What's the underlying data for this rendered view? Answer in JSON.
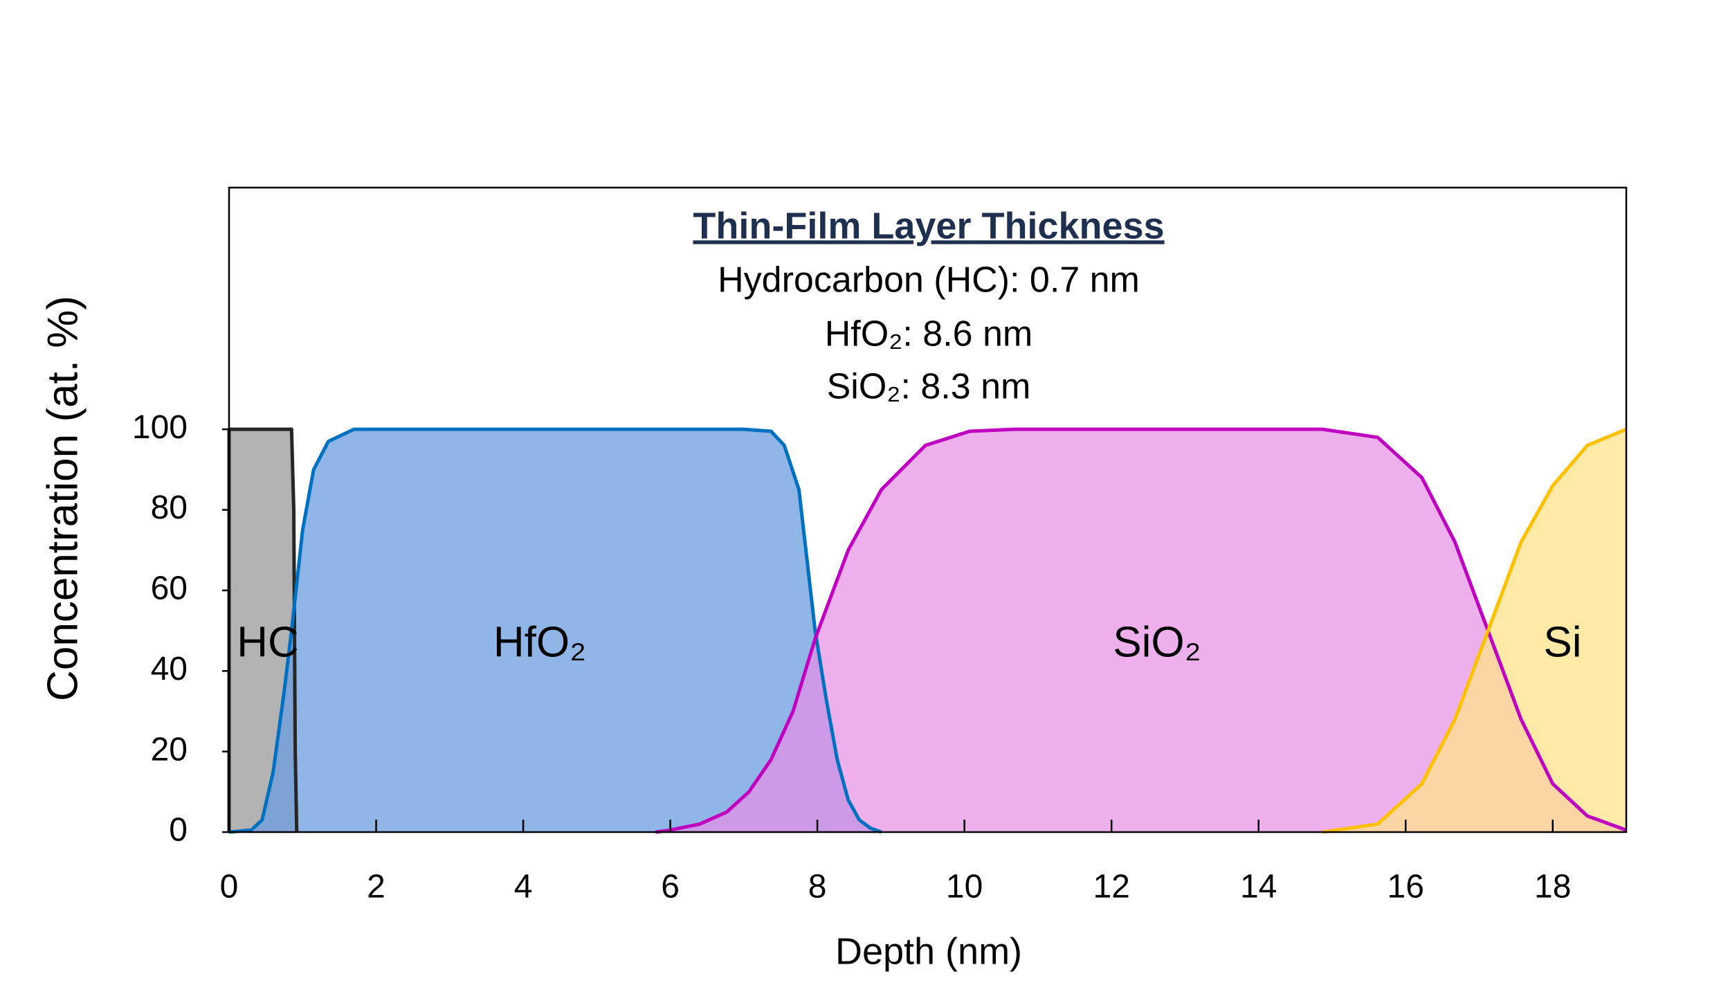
{
  "chart_data": {
    "type": "area",
    "annotations": [
      "Thin-Film Layer Thickness",
      "Hydrocarbon (HC): 0.7 nm",
      "HfO₂: 8.6 nm",
      "SiO₂: 8.3 nm"
    ],
    "region_labels": [
      "HC",
      "HfO₂",
      "SiO₂",
      "Si"
    ],
    "xlabel": "Depth (nm)",
    "ylabel": "Concentration (at. %)",
    "xlim": [
      0,
      19
    ],
    "ylim": [
      0,
      160
    ],
    "xticks": [
      0,
      2,
      4,
      6,
      8,
      10,
      12,
      14,
      16,
      18
    ],
    "yticks": [
      0,
      20,
      40,
      60,
      80,
      100
    ],
    "series": [
      {
        "name": "HC",
        "color": "#262626",
        "fill": "#b3b3b3",
        "x": [
          0,
          0,
          0.85,
          0.88,
          0.9,
          0.92
        ],
        "values": [
          0,
          100,
          100,
          80,
          20,
          0
        ]
      },
      {
        "name": "HfO₂",
        "color": "#0070c0",
        "fill": "#6b9ddf",
        "x": [
          0,
          0.3,
          0.45,
          0.6,
          0.75,
          0.85,
          1.0,
          1.15,
          1.35,
          1.7,
          2.0,
          7.0,
          7.37,
          7.55,
          7.75,
          7.97,
          8.12,
          8.27,
          8.42,
          8.57,
          8.72,
          8.87
        ],
        "values": [
          0,
          0.5,
          3,
          15,
          35,
          50,
          75,
          90,
          97,
          100,
          100,
          100,
          99.5,
          96,
          85,
          50,
          33,
          18,
          8,
          3,
          1,
          0
        ]
      },
      {
        "name": "SiO₂",
        "color": "#c000c0",
        "fill": "#e58fe5",
        "x": [
          5.8,
          6.0,
          6.4,
          6.77,
          7.07,
          7.37,
          7.67,
          7.97,
          8.42,
          8.87,
          9.47,
          10.07,
          10.67,
          14.87,
          15.62,
          16.22,
          16.67,
          17.12,
          17.57,
          18.0,
          18.47,
          19.0
        ],
        "values": [
          0,
          0.5,
          2,
          5,
          10,
          18,
          30,
          48,
          70,
          85,
          96,
          99.5,
          100,
          100,
          98,
          88,
          72,
          50,
          28,
          12,
          4,
          0.5
        ]
      },
      {
        "name": "Si",
        "color": "#ffc000",
        "fill": "#ffe28a",
        "x": [
          14.87,
          15.62,
          16.22,
          16.67,
          17.12,
          17.57,
          18.0,
          18.47,
          19.0
        ],
        "values": [
          0,
          2,
          12,
          28,
          50,
          72,
          86,
          96,
          100
        ]
      }
    ]
  }
}
